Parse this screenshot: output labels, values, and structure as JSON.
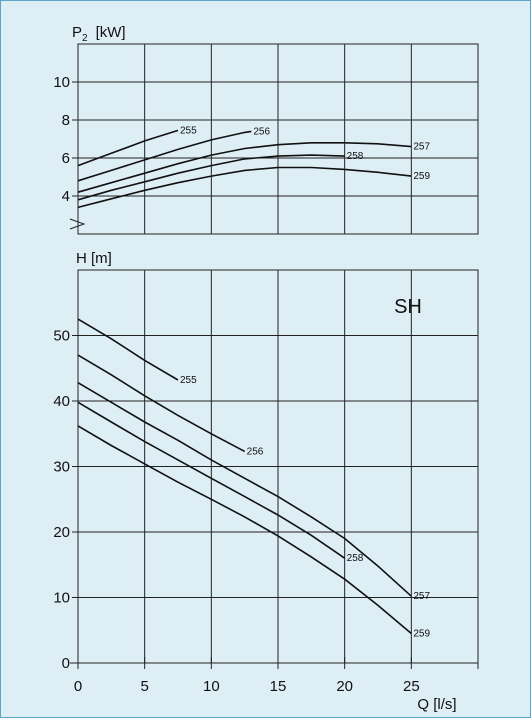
{
  "chart_data": [
    {
      "type": "line",
      "ylabel": "P",
      "ylabel_sub": "2",
      "ylabel_unit": "[kW]",
      "xlim": [
        0,
        30
      ],
      "ylim": [
        2,
        12
      ],
      "yticks": [
        4,
        6,
        8,
        10
      ],
      "grid": true,
      "series": [
        {
          "name": "255",
          "x": [
            0,
            2.5,
            5,
            7.5
          ],
          "y": [
            5.6,
            6.25,
            6.9,
            7.45
          ]
        },
        {
          "name": "256",
          "x": [
            0,
            2.5,
            5,
            7.5,
            10,
            12.5,
            13
          ],
          "y": [
            4.8,
            5.35,
            5.9,
            6.45,
            6.95,
            7.35,
            7.4
          ]
        },
        {
          "name": "257",
          "x": [
            0,
            2.5,
            5,
            7.5,
            10,
            12.5,
            15,
            17.5,
            20,
            22.5,
            25
          ],
          "y": [
            4.2,
            4.7,
            5.2,
            5.7,
            6.15,
            6.5,
            6.7,
            6.8,
            6.8,
            6.75,
            6.6
          ]
        },
        {
          "name": "258",
          "x": [
            0,
            2.5,
            5,
            7.5,
            10,
            12.5,
            15,
            17.5,
            20
          ],
          "y": [
            3.8,
            4.3,
            4.75,
            5.2,
            5.6,
            5.95,
            6.1,
            6.15,
            6.1
          ]
        },
        {
          "name": "259",
          "x": [
            0,
            2.5,
            5,
            7.5,
            10,
            12.5,
            15,
            17.5,
            20,
            22.5,
            25
          ],
          "y": [
            3.4,
            3.85,
            4.3,
            4.7,
            5.05,
            5.35,
            5.5,
            5.5,
            5.4,
            5.25,
            5.05
          ]
        }
      ]
    },
    {
      "type": "line",
      "ylabel": "H [m]",
      "xlabel": "Q [l/s]",
      "xlim": [
        0,
        30
      ],
      "ylim": [
        0,
        60
      ],
      "xticks": [
        0,
        5,
        10,
        15,
        20,
        25
      ],
      "yticks": [
        0,
        10,
        20,
        30,
        40,
        50
      ],
      "grid": true,
      "annotation": "SH",
      "series": [
        {
          "name": "255",
          "x": [
            0,
            2.5,
            5,
            7.5
          ],
          "y": [
            52.5,
            49.5,
            46.2,
            43.2
          ]
        },
        {
          "name": "256",
          "x": [
            0,
            2.5,
            5,
            7.5,
            10,
            12.5
          ],
          "y": [
            47,
            44,
            40.8,
            37.8,
            35,
            32.3
          ]
        },
        {
          "name": "257",
          "x": [
            0,
            2.5,
            5,
            7.5,
            10,
            12.5,
            15,
            17.5,
            20,
            22.5,
            25
          ],
          "y": [
            42.8,
            39.8,
            36.8,
            34,
            31,
            28.2,
            25.4,
            22.3,
            19,
            14.8,
            10.2
          ]
        },
        {
          "name": "258",
          "x": [
            0,
            2.5,
            5,
            7.5,
            10,
            12.5,
            15,
            17.5,
            20
          ],
          "y": [
            39.8,
            36.8,
            33.8,
            31,
            28.2,
            25.4,
            22.6,
            19.5,
            16
          ]
        },
        {
          "name": "259",
          "x": [
            0,
            2.5,
            5,
            7.5,
            10,
            12.5,
            15,
            17.5,
            20,
            22.5,
            25
          ],
          "y": [
            36.2,
            33.2,
            30.4,
            27.6,
            25,
            22.3,
            19.4,
            16.2,
            12.8,
            8.8,
            4.5
          ]
        }
      ]
    }
  ]
}
